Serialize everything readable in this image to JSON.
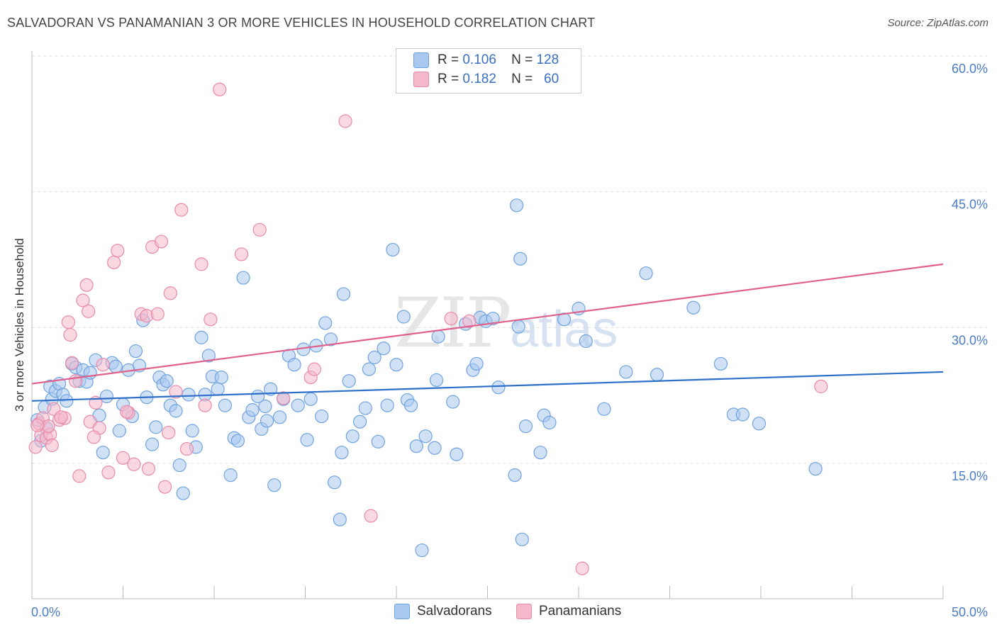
{
  "title": "SALVADORAN VS PANAMANIAN 3 OR MORE VEHICLES IN HOUSEHOLD CORRELATION CHART",
  "source": "Source: ZipAtlas.com",
  "watermark": {
    "zip": "ZIP",
    "atlas": "atlas"
  },
  "legend": {
    "rows": [
      {
        "r_label": "R =",
        "r_value": "0.106",
        "n_label": "N =",
        "n_value": "128",
        "color": "#a9c8ef"
      },
      {
        "r_label": "R =",
        "r_value": "0.182",
        "n_label": "N =",
        "n_value": "60",
        "color": "#f5b8cb"
      }
    ]
  },
  "bottom_legend": [
    {
      "label": "Salvadorans",
      "color": "#a9c8ef"
    },
    {
      "label": "Panamanians",
      "color": "#f5b8cb"
    }
  ],
  "chart_data": {
    "type": "scatter",
    "title": "SALVADORAN VS PANAMANIAN 3 OR MORE VEHICLES IN HOUSEHOLD CORRELATION CHART",
    "xlabel": "",
    "ylabel": "3 or more Vehicles in Household",
    "xlim": [
      0,
      50
    ],
    "ylim": [
      0,
      62
    ],
    "y_ticks": [
      15,
      30,
      45,
      60
    ],
    "y_tick_labels": [
      "15.0%",
      "30.0%",
      "45.0%",
      "60.0%"
    ],
    "x_tick_labels": [
      "0.0%",
      "50.0%"
    ],
    "grid": true,
    "series": [
      {
        "name": "Salvadorans",
        "color": "#6fa3e0",
        "fill": "#a9c8ef",
        "trend": {
          "x": [
            0,
            50
          ],
          "y": [
            21.9,
            25.1
          ]
        },
        "points": [
          [
            0.3,
            19.8
          ],
          [
            0.5,
            17.5
          ],
          [
            0.7,
            21.2
          ],
          [
            0.8,
            18.9
          ],
          [
            1.0,
            23.5
          ],
          [
            1.1,
            22.1
          ],
          [
            1.3,
            23.0
          ],
          [
            1.5,
            23.8
          ],
          [
            1.7,
            22.6
          ],
          [
            1.9,
            21.9
          ],
          [
            2.2,
            26.0
          ],
          [
            2.4,
            25.6
          ],
          [
            2.6,
            24.1
          ],
          [
            2.8,
            25.3
          ],
          [
            3.0,
            24.0
          ],
          [
            3.2,
            25.0
          ],
          [
            3.5,
            26.4
          ],
          [
            3.7,
            20.3
          ],
          [
            3.9,
            16.2
          ],
          [
            4.1,
            22.4
          ],
          [
            4.4,
            26.1
          ],
          [
            4.6,
            25.7
          ],
          [
            4.8,
            18.6
          ],
          [
            5.0,
            21.5
          ],
          [
            5.3,
            25.3
          ],
          [
            5.5,
            20.2
          ],
          [
            5.7,
            27.4
          ],
          [
            5.9,
            25.8
          ],
          [
            6.1,
            30.8
          ],
          [
            6.3,
            22.3
          ],
          [
            6.6,
            17.1
          ],
          [
            6.8,
            19.0
          ],
          [
            7.0,
            24.5
          ],
          [
            7.2,
            23.7
          ],
          [
            7.4,
            24.1
          ],
          [
            7.6,
            21.4
          ],
          [
            7.9,
            20.8
          ],
          [
            8.1,
            14.8
          ],
          [
            8.3,
            11.7
          ],
          [
            8.6,
            22.6
          ],
          [
            8.8,
            18.6
          ],
          [
            9.0,
            16.8
          ],
          [
            9.3,
            28.9
          ],
          [
            9.5,
            22.6
          ],
          [
            9.7,
            26.9
          ],
          [
            9.9,
            24.6
          ],
          [
            10.2,
            23.2
          ],
          [
            10.4,
            24.5
          ],
          [
            10.6,
            21.4
          ],
          [
            10.9,
            13.7
          ],
          [
            11.1,
            17.8
          ],
          [
            11.3,
            17.5
          ],
          [
            11.6,
            35.5
          ],
          [
            11.9,
            20.1
          ],
          [
            12.1,
            20.9
          ],
          [
            12.4,
            22.4
          ],
          [
            12.6,
            18.8
          ],
          [
            12.9,
            19.7
          ],
          [
            13.1,
            23.2
          ],
          [
            13.3,
            12.6
          ],
          [
            13.6,
            20.1
          ],
          [
            13.8,
            22.1
          ],
          [
            14.1,
            26.9
          ],
          [
            14.4,
            25.9
          ],
          [
            14.6,
            21.4
          ],
          [
            14.9,
            27.6
          ],
          [
            15.1,
            17.6
          ],
          [
            15.3,
            22.1
          ],
          [
            15.6,
            28.0
          ],
          [
            15.9,
            20.2
          ],
          [
            16.1,
            30.5
          ],
          [
            16.4,
            28.7
          ],
          [
            16.6,
            12.9
          ],
          [
            16.9,
            8.8
          ],
          [
            17.1,
            33.7
          ],
          [
            17.4,
            24.1
          ],
          [
            17.6,
            18.0
          ],
          [
            18.0,
            19.6
          ],
          [
            18.3,
            21.1
          ],
          [
            18.5,
            25.4
          ],
          [
            18.8,
            26.7
          ],
          [
            19.0,
            17.4
          ],
          [
            19.3,
            27.7
          ],
          [
            19.5,
            21.4
          ],
          [
            19.8,
            38.6
          ],
          [
            20.0,
            25.9
          ],
          [
            20.4,
            31.2
          ],
          [
            20.6,
            22.0
          ],
          [
            20.8,
            21.4
          ],
          [
            21.1,
            16.9
          ],
          [
            21.4,
            5.4
          ],
          [
            21.6,
            18.0
          ],
          [
            22.1,
            16.7
          ],
          [
            22.2,
            24.2
          ],
          [
            22.3,
            29.0
          ],
          [
            23.1,
            21.8
          ],
          [
            23.3,
            16.0
          ],
          [
            23.8,
            30.4
          ],
          [
            24.2,
            25.3
          ],
          [
            24.4,
            26.0
          ],
          [
            24.6,
            31.1
          ],
          [
            24.9,
            30.7
          ],
          [
            25.6,
            23.4
          ],
          [
            25.3,
            31.0
          ],
          [
            26.5,
            13.7
          ],
          [
            26.8,
            37.6
          ],
          [
            26.7,
            30.1
          ],
          [
            27.1,
            19.1
          ],
          [
            27.9,
            16.2
          ],
          [
            28.1,
            20.3
          ],
          [
            28.4,
            19.5
          ],
          [
            29.2,
            30.9
          ],
          [
            30.0,
            32.1
          ],
          [
            30.4,
            28.5
          ],
          [
            31.4,
            21.0
          ],
          [
            32.6,
            25.1
          ],
          [
            33.7,
            36.0
          ],
          [
            34.3,
            24.8
          ],
          [
            36.3,
            32.2
          ],
          [
            37.8,
            26.0
          ],
          [
            38.5,
            20.4
          ],
          [
            39.0,
            20.4
          ],
          [
            39.9,
            19.4
          ],
          [
            43.0,
            14.4
          ],
          [
            26.9,
            6.6
          ],
          [
            26.6,
            43.5
          ],
          [
            17.0,
            16.2
          ],
          [
            12.8,
            21.3
          ]
        ]
      },
      {
        "name": "Panamanians",
        "color": "#e88aaa",
        "fill": "#f5b8cb",
        "trend": {
          "x": [
            0,
            50
          ],
          "y": [
            23.8,
            37.0
          ]
        },
        "points": [
          [
            0.2,
            16.8
          ],
          [
            0.4,
            19.4
          ],
          [
            0.5,
            18.1
          ],
          [
            0.6,
            20.0
          ],
          [
            0.8,
            17.8
          ],
          [
            1.0,
            18.2
          ],
          [
            1.1,
            17.0
          ],
          [
            1.2,
            21.0
          ],
          [
            1.5,
            19.8
          ],
          [
            1.8,
            20.0
          ],
          [
            2.0,
            30.6
          ],
          [
            2.1,
            29.2
          ],
          [
            2.4,
            24.1
          ],
          [
            2.6,
            13.6
          ],
          [
            2.8,
            33.0
          ],
          [
            3.0,
            34.7
          ],
          [
            3.1,
            31.8
          ],
          [
            3.2,
            19.6
          ],
          [
            3.5,
            21.7
          ],
          [
            3.7,
            18.9
          ],
          [
            3.9,
            25.9
          ],
          [
            4.2,
            14.0
          ],
          [
            4.5,
            37.2
          ],
          [
            4.7,
            38.5
          ],
          [
            5.0,
            15.6
          ],
          [
            5.3,
            20.6
          ],
          [
            5.6,
            14.9
          ],
          [
            6.0,
            31.5
          ],
          [
            6.3,
            31.3
          ],
          [
            6.4,
            14.4
          ],
          [
            6.6,
            38.9
          ],
          [
            6.9,
            31.5
          ],
          [
            7.1,
            39.5
          ],
          [
            7.3,
            12.4
          ],
          [
            7.5,
            18.4
          ],
          [
            7.6,
            33.8
          ],
          [
            7.9,
            22.9
          ],
          [
            8.2,
            43.0
          ],
          [
            8.5,
            16.6
          ],
          [
            9.3,
            37.0
          ],
          [
            9.5,
            21.4
          ],
          [
            9.8,
            30.9
          ],
          [
            10.3,
            56.3
          ],
          [
            11.5,
            38.1
          ],
          [
            12.5,
            40.8
          ],
          [
            13.8,
            22.2
          ],
          [
            15.3,
            24.5
          ],
          [
            15.5,
            25.4
          ],
          [
            17.2,
            52.8
          ],
          [
            18.6,
            9.2
          ],
          [
            23.0,
            31.0
          ],
          [
            24.0,
            30.7
          ],
          [
            30.2,
            3.4
          ],
          [
            43.3,
            23.5
          ],
          [
            0.9,
            19.1
          ],
          [
            1.6,
            20.1
          ],
          [
            0.3,
            19.2
          ],
          [
            3.4,
            17.9
          ],
          [
            5.2,
            20.7
          ],
          [
            2.2,
            26.1
          ]
        ]
      }
    ]
  }
}
